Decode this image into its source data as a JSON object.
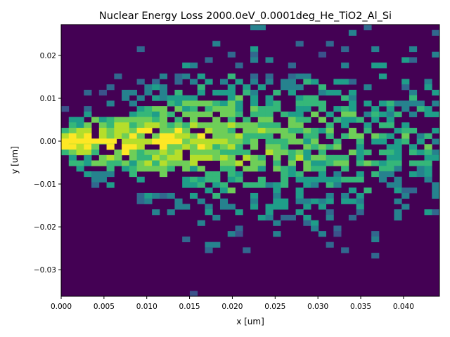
{
  "chart_data": {
    "type": "heatmap",
    "title": "Nuclear Energy Loss 2000.0eV_0.0001deg_He_TiO2_Al_Si",
    "xlabel": "x [um]",
    "ylabel": "y [um]",
    "xlim": [
      0.0,
      0.0442
    ],
    "ylim": [
      -0.0362,
      0.0272
    ],
    "xticks": [
      "0.000",
      "0.005",
      "0.010",
      "0.015",
      "0.020",
      "0.025",
      "0.030",
      "0.035",
      "0.040"
    ],
    "yticks": [
      "0.02",
      "0.01",
      "0.00",
      "−0.01",
      "−0.02",
      "−0.03"
    ],
    "bins": [
      50,
      50
    ],
    "colormap": "viridis",
    "background_color": "#440154",
    "hotspot": {
      "x_range": [
        0.0,
        0.0065
      ],
      "y": 0.0
    }
  }
}
